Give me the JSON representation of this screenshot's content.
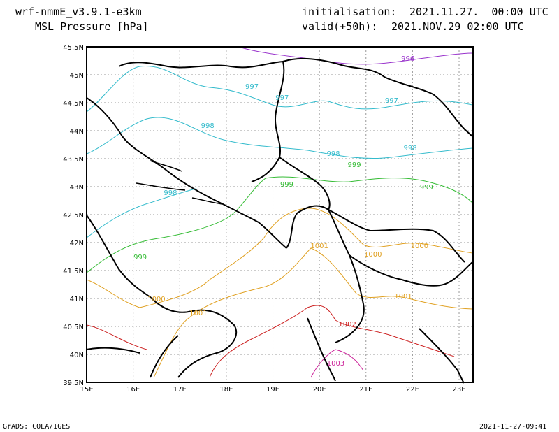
{
  "header": {
    "model": "wrf-nmmE_v3.9.1-e3km",
    "field": "MSL Pressure [hPa]",
    "init_label": "initialisation:",
    "init_value": "2021.11.27.  00:00 UTC",
    "valid_label": "valid(+50h):",
    "valid_value": "2021.NOV.29 02:00 UTC"
  },
  "footer": {
    "credit": "GrADS: COLA/IGES",
    "timestamp": "2021-11-27-09:41"
  },
  "chart_data": {
    "type": "contour-map",
    "x_ticks": [
      "15E",
      "16E",
      "17E",
      "18E",
      "19E",
      "20E",
      "21E",
      "22E",
      "23E"
    ],
    "y_ticks": [
      "45.5N",
      "45N",
      "44.5N",
      "44N",
      "43.5N",
      "43N",
      "42.5N",
      "42N",
      "41.5N",
      "41N",
      "40.5N",
      "40N",
      "39.5N"
    ],
    "xlim": [
      15,
      23.3
    ],
    "ylim": [
      39.5,
      45.5
    ],
    "grid": true,
    "contour_labels": [
      {
        "text": "996",
        "color": "#9933cc",
        "lon": 21.9,
        "lat": 45.25
      },
      {
        "text": "997",
        "color": "#33bbcc",
        "lon": 18.55,
        "lat": 44.75
      },
      {
        "text": "997",
        "color": "#33bbcc",
        "lon": 19.2,
        "lat": 44.55
      },
      {
        "text": "997",
        "color": "#33bbcc",
        "lon": 21.55,
        "lat": 44.5
      },
      {
        "text": "998",
        "color": "#33bbcc",
        "lon": 17.6,
        "lat": 44.05
      },
      {
        "text": "998",
        "color": "#33bbcc",
        "lon": 20.3,
        "lat": 43.55
      },
      {
        "text": "998",
        "color": "#33bbcc",
        "lon": 21.95,
        "lat": 43.65
      },
      {
        "text": "998",
        "color": "#33bbcc",
        "lon": 16.8,
        "lat": 42.85
      },
      {
        "text": "999",
        "color": "#33bb33",
        "lon": 20.75,
        "lat": 43.35
      },
      {
        "text": "999",
        "color": "#33bb33",
        "lon": 19.3,
        "lat": 43.0
      },
      {
        "text": "999",
        "color": "#33bb33",
        "lon": 22.3,
        "lat": 42.95
      },
      {
        "text": "999",
        "color": "#33bb33",
        "lon": 16.15,
        "lat": 41.7
      },
      {
        "text": "1000",
        "color": "#e0a020",
        "lon": 21.15,
        "lat": 41.75
      },
      {
        "text": "1000",
        "color": "#e0a020",
        "lon": 22.15,
        "lat": 41.9
      },
      {
        "text": "1000",
        "color": "#e0a020",
        "lon": 16.5,
        "lat": 40.95
      },
      {
        "text": "1001",
        "color": "#e0a020",
        "lon": 20.0,
        "lat": 41.9
      },
      {
        "text": "1001",
        "color": "#e0a020",
        "lon": 21.8,
        "lat": 41.0
      },
      {
        "text": "1001",
        "color": "#e0a020",
        "lon": 17.4,
        "lat": 40.7
      },
      {
        "text": "1002",
        "color": "#cc2222",
        "lon": 20.6,
        "lat": 40.5
      },
      {
        "text": "1003",
        "color": "#cc2299",
        "lon": 20.35,
        "lat": 39.8
      }
    ]
  }
}
